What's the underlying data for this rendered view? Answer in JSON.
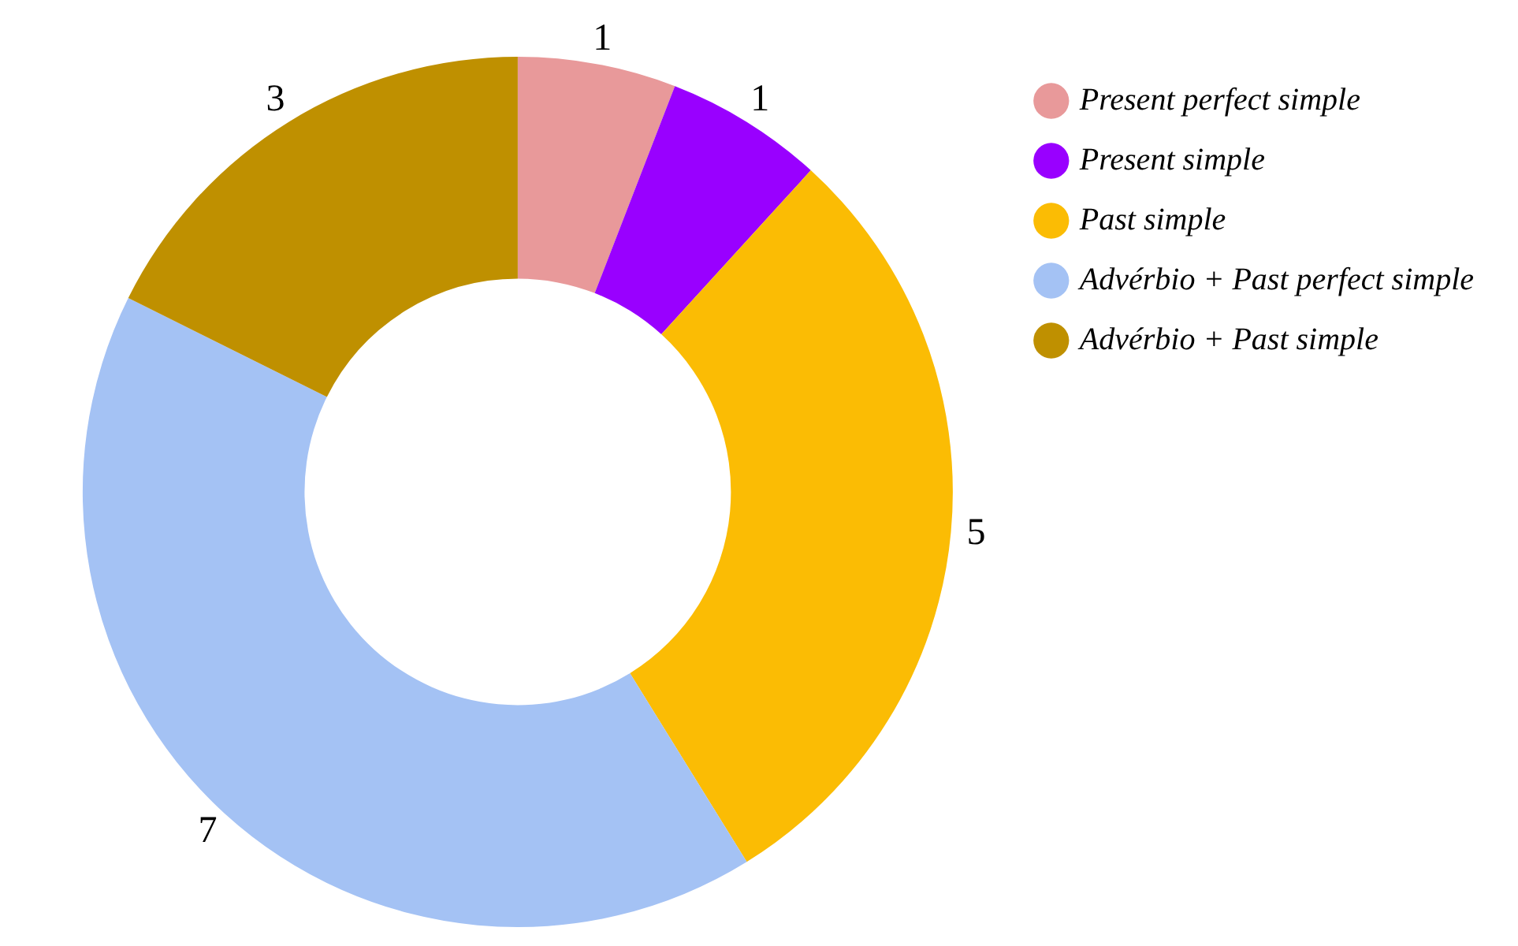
{
  "chart_data": {
    "type": "donut",
    "categories": [
      "Present perfect simple",
      "Present simple",
      "Past simple",
      "Advérbio + Past perfect simple",
      "Advérbio + Past simple"
    ],
    "values": [
      1,
      1,
      5,
      7,
      3
    ],
    "colors": [
      "#e8999a",
      "#9900ff",
      "#fbbc04",
      "#a4c2f4",
      "#bf9000"
    ],
    "data_labels": true,
    "legend": "top right"
  }
}
